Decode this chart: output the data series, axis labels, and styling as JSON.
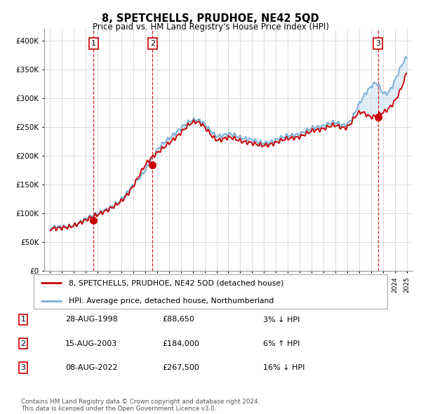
{
  "title": "8, SPETCHELLS, PRUDHOE, NE42 5QD",
  "subtitle": "Price paid vs. HM Land Registry's House Price Index (HPI)",
  "xlim_start": 1994.5,
  "xlim_end": 2025.5,
  "ylim_min": 0,
  "ylim_max": 420000,
  "yticks": [
    0,
    50000,
    100000,
    150000,
    200000,
    250000,
    300000,
    350000,
    400000
  ],
  "ytick_labels": [
    "£0",
    "£50K",
    "£100K",
    "£150K",
    "£200K",
    "£250K",
    "£300K",
    "£350K",
    "£400K"
  ],
  "sale_dates": [
    "28-AUG-1998",
    "15-AUG-2003",
    "08-AUG-2022"
  ],
  "sale_years": [
    1998.65,
    2003.62,
    2022.6
  ],
  "sale_prices": [
    88650,
    184000,
    267500
  ],
  "sale_labels": [
    "1",
    "2",
    "3"
  ],
  "sale_hpi_pct": [
    "3% ↓ HPI",
    "6% ↑ HPI",
    "16% ↓ HPI"
  ],
  "sale_prices_str": [
    "£88,650",
    "£184,000",
    "£267,500"
  ],
  "line_color_red": "#cc0000",
  "line_color_blue": "#7aadd4",
  "legend_label_red": "8, SPETCHELLS, PRUDHOE, NE42 5QD (detached house)",
  "legend_label_blue": "HPI: Average price, detached house, Northumberland",
  "footer_text": "Contains HM Land Registry data © Crown copyright and database right 2024.\nThis data is licensed under the Open Government Licence v3.0.",
  "background_color": "#ffffff",
  "grid_color": "#cccccc",
  "vline_color": "#cc0000",
  "shaded_color": "#c8dff0",
  "marker_box_color": "#cc0000"
}
